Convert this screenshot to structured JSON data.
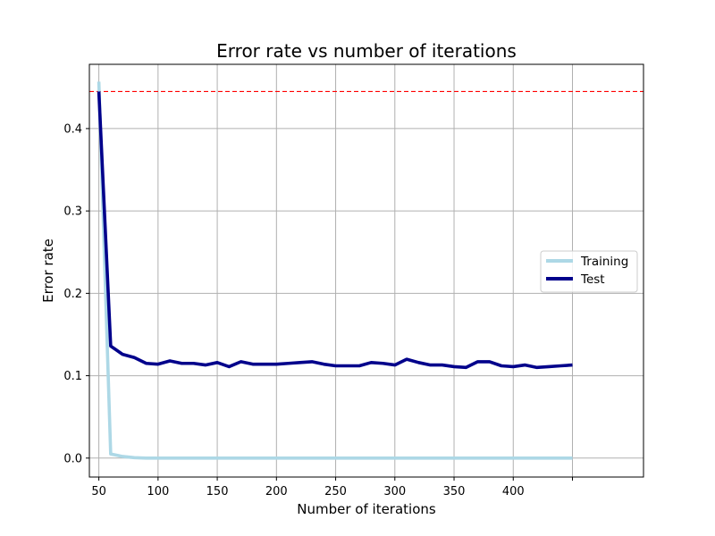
{
  "chart_data": {
    "type": "line",
    "title": "Error rate vs number of iterations",
    "xlabel": "Number of iterations",
    "ylabel": "Error rate",
    "xlim": [
      42,
      510
    ],
    "ylim": [
      -0.023,
      0.478
    ],
    "xticks": [
      50,
      100,
      150,
      200,
      250,
      300,
      350,
      400,
      450
    ],
    "xtick_labels": [
      "50",
      "100",
      "150",
      "200",
      "250",
      "300",
      "350",
      "400",
      ""
    ],
    "yticks": [
      0.0,
      0.1,
      0.2,
      0.3,
      0.4
    ],
    "ytick_labels": [
      "0.0",
      "0.1",
      "0.2",
      "0.3",
      "0.4"
    ],
    "grid": true,
    "legend_position": "center-right",
    "reference_line": {
      "y": 0.445,
      "color": "#ff0000",
      "style": "dashed"
    },
    "x": [
      50,
      60,
      70,
      80,
      90,
      100,
      110,
      120,
      130,
      140,
      150,
      160,
      170,
      180,
      190,
      200,
      210,
      220,
      230,
      240,
      250,
      260,
      270,
      280,
      290,
      300,
      310,
      320,
      330,
      340,
      350,
      360,
      370,
      380,
      390,
      400,
      410,
      420,
      430,
      440,
      450
    ],
    "series": [
      {
        "name": "Training",
        "color": "#add8e6",
        "values": [
          0.457,
          0.005,
          0.002,
          0.0005,
          0,
          0,
          0,
          0,
          0,
          0,
          0,
          0,
          0,
          0,
          0,
          0,
          0,
          0,
          0,
          0,
          0,
          0,
          0,
          0,
          0,
          0,
          0,
          0,
          0,
          0,
          0,
          0,
          0,
          0,
          0,
          0,
          0,
          0,
          0,
          0,
          0
        ]
      },
      {
        "name": "Test",
        "color": "#00008b",
        "values": [
          0.445,
          0.136,
          0.126,
          0.122,
          0.115,
          0.114,
          0.118,
          0.115,
          0.115,
          0.113,
          0.116,
          0.111,
          0.117,
          0.114,
          0.114,
          0.114,
          0.115,
          0.116,
          0.117,
          0.114,
          0.112,
          0.112,
          0.112,
          0.116,
          0.115,
          0.113,
          0.12,
          0.116,
          0.113,
          0.113,
          0.111,
          0.11,
          0.117,
          0.117,
          0.112,
          0.111,
          0.113,
          0.11,
          0.111,
          0.112,
          0.113
        ]
      }
    ]
  }
}
